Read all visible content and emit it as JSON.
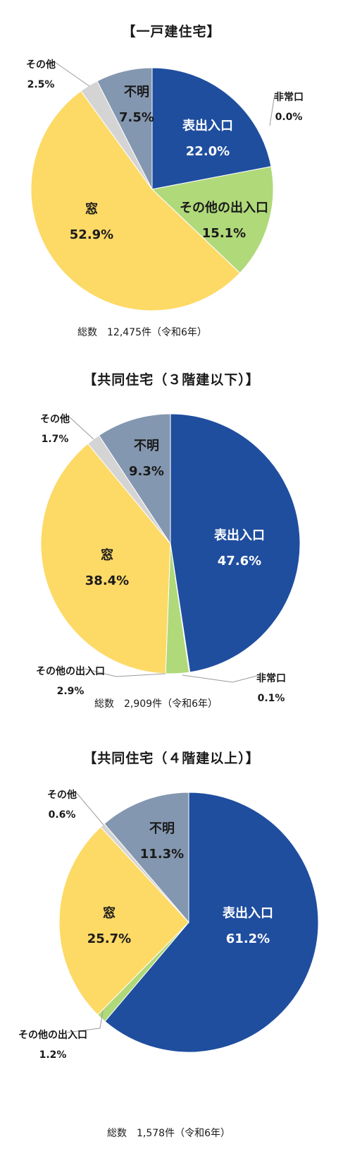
{
  "colors": {
    "表出入口": "#1f4e9f",
    "その他の出入口": "#b0d97a",
    "窓": "#fdd966",
    "その他": "#d4d4d4",
    "不明": "#8497b0",
    "非常口": "#1f4e9f"
  },
  "chart_data": [
    {
      "type": "pie",
      "title": "【一戸建住宅】",
      "total_text": "総数　12,475件（令和6年）",
      "slices": [
        {
          "label": "表出入口",
          "value": 22.0,
          "value_text": "22.0%"
        },
        {
          "label": "非常口",
          "value": 0.0,
          "value_text": "0.0%"
        },
        {
          "label": "その他の出入口",
          "value": 15.1,
          "value_text": "15.1%"
        },
        {
          "label": "窓",
          "value": 52.9,
          "value_text": "52.9%"
        },
        {
          "label": "その他",
          "value": 2.5,
          "value_text": "2.5%"
        },
        {
          "label": "不明",
          "value": 7.5,
          "value_text": "7.5%"
        }
      ]
    },
    {
      "type": "pie",
      "title": "【共同住宅（３階建以下）】",
      "total_text": "総数　2,909件（令和6年）",
      "slices": [
        {
          "label": "表出入口",
          "value": 47.6,
          "value_text": "47.6%"
        },
        {
          "label": "非常口",
          "value": 0.1,
          "value_text": "0.1%"
        },
        {
          "label": "その他の出入口",
          "value": 2.9,
          "value_text": "2.9%"
        },
        {
          "label": "窓",
          "value": 38.4,
          "value_text": "38.4%"
        },
        {
          "label": "その他",
          "value": 1.7,
          "value_text": "1.7%"
        },
        {
          "label": "不明",
          "value": 9.3,
          "value_text": "9.3%"
        }
      ]
    },
    {
      "type": "pie",
      "title": "【共同住宅（４階建以上）】",
      "total_text": "総数　1,578件（令和6年）",
      "slices": [
        {
          "label": "表出入口",
          "value": 61.2,
          "value_text": "61.2%"
        },
        {
          "label": "その他の出入口",
          "value": 1.2,
          "value_text": "1.2%"
        },
        {
          "label": "窓",
          "value": 25.7,
          "value_text": "25.7%"
        },
        {
          "label": "その他",
          "value": 0.6,
          "value_text": "0.6%"
        },
        {
          "label": "不明",
          "value": 11.3,
          "value_text": "11.3%"
        }
      ]
    }
  ]
}
